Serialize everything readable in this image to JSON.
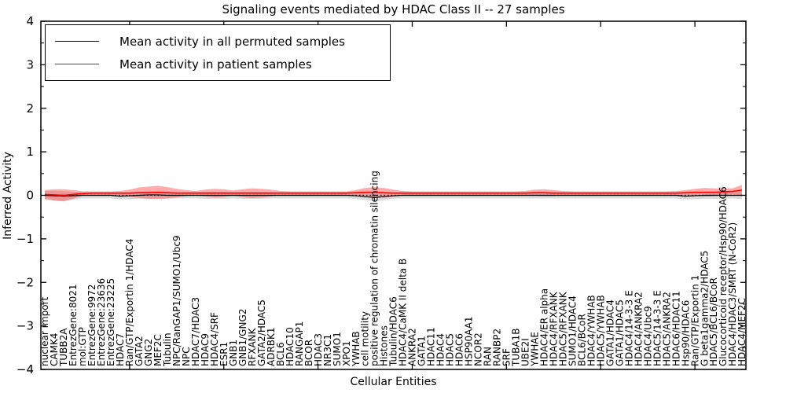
{
  "figure": {
    "title": "Signaling events mediated by HDAC Class II -- 27 samples",
    "xlabel": "Cellular Entities",
    "ylabel": "Inferred Activity"
  },
  "legend": {
    "items": [
      {
        "label": "Mean activity in all permuted samples",
        "color": "#000000"
      },
      {
        "label": "Mean activity in patient samples",
        "color": "#ff0000"
      }
    ]
  },
  "chart_data": {
    "type": "line",
    "title": "Signaling events mediated by HDAC Class II -- 27 samples",
    "xlabel": "Cellular Entities",
    "ylabel": "Inferred Activity",
    "ylim": [
      -4,
      4
    ],
    "y_major_ticks": [
      -4,
      -3,
      -2,
      -1,
      0,
      1,
      2,
      3,
      4
    ],
    "y_minor_step": 0.5,
    "x_major_tick_indices": [
      9,
      19,
      29,
      39,
      49,
      59,
      69
    ],
    "grid": false,
    "legend_position": "upper left",
    "zero_line": {
      "value": 0,
      "style": "dotted",
      "color": "#000000"
    },
    "colors": {
      "permuted_line": "#000000",
      "permuted_band": "#bbbbbb",
      "patient_line": "#ff0000",
      "patient_band": "#ff4444"
    },
    "categories": [
      "nuclear import",
      "CAMK4",
      "TUBB2A",
      "EntrezGene:8021",
      "mol:GTP",
      "EntrezGene:9972",
      "EntrezGene:23636",
      "EntrezGene:23225",
      "HDAC7",
      "Ran/GTP/Exportin 1/HDAC4",
      "GATA2",
      "GNG2",
      "MEF2C",
      "Tubulin",
      "NPC/RanGAP1/SUMO1/Ubc9",
      "NPC",
      "HDAC7/HDAC3",
      "HDAC9",
      "HDAC4/SRF",
      "ESR1",
      "GNB1",
      "GNB1/GNG2",
      "RFXANK",
      "GATA2/HDAC5",
      "ADRBK1",
      "BCL6",
      "HDAC10",
      "RANGAP1",
      "BCOR",
      "HDAC3",
      "NR3C1",
      "SUMO1",
      "XPO1",
      "YWHAB",
      "cell motility",
      "positive regulation of chromatin silencing",
      "Histones",
      "Tubulin/HDAC6",
      "HDAC4/CaMK II delta B",
      "ANKRA2",
      "GATA1",
      "HDAC11",
      "HDAC4",
      "HDAC5",
      "HDAC6",
      "HSP90AA1",
      "NCOR2",
      "RAN",
      "RANBP2",
      "SRF",
      "TUBA1B",
      "UBE2I",
      "YWHAE",
      "HDAC4/ER alpha",
      "HDAC4/RFXANK",
      "HDAC5/RFXANK",
      "SUMO1/HDAC4",
      "BCL6/BCoR",
      "HDAC4/YWHAB",
      "HDAC5/YWHAB",
      "GATA1/HDAC4",
      "GATA1/HDAC5",
      "HDAC4/14-3-3 E",
      "HDAC4/ANKRA2",
      "HDAC4/Ubc9",
      "HDAC5/14-3-3 E",
      "HDAC5/ANKRA2",
      "HDAC6/HDAC11",
      "Hsp90/HDAC6",
      "Ran/GTP/Exportin 1",
      "G beta1gamma2/HDAC5",
      "HDAC5/BCL6/BCoR",
      "Glucocorticoid receptor/Hsp90/HDAC6",
      "HDAC4/HDAC3/SMRT (N-CoR2)",
      "HDAC4/MEF2C"
    ],
    "series": [
      {
        "name": "Mean activity in all permuted samples",
        "values": [
          0,
          -0.01,
          -0.02,
          -0.01,
          0,
          0,
          0,
          0,
          -0.02,
          -0.01,
          0,
          0.01,
          0.01,
          0,
          0,
          0,
          0,
          0,
          0,
          0,
          0,
          0,
          0,
          0,
          0,
          0,
          0,
          0,
          0,
          0,
          0,
          0,
          0,
          -0.01,
          -0.03,
          -0.05,
          -0.03,
          -0.01,
          0,
          0,
          0,
          0,
          0,
          0,
          0,
          0,
          0,
          0,
          0,
          0,
          0,
          0,
          0,
          0,
          0,
          0,
          0,
          0,
          0,
          0,
          0,
          0,
          0,
          0,
          0,
          0,
          0,
          0,
          -0.02,
          -0.01,
          0,
          0,
          0,
          0,
          0
        ],
        "band_halfwidth": [
          0.1,
          0.11,
          0.11,
          0.09,
          0.07,
          0.07,
          0.07,
          0.07,
          0.07,
          0.08,
          0.08,
          0.09,
          0.09,
          0.08,
          0.07,
          0.07,
          0.07,
          0.08,
          0.08,
          0.08,
          0.07,
          0.08,
          0.08,
          0.08,
          0.07,
          0.07,
          0.07,
          0.07,
          0.07,
          0.07,
          0.07,
          0.07,
          0.07,
          0.07,
          0.08,
          0.09,
          0.08,
          0.07,
          0.07,
          0.07,
          0.07,
          0.07,
          0.07,
          0.07,
          0.07,
          0.07,
          0.07,
          0.07,
          0.07,
          0.07,
          0.07,
          0.07,
          0.07,
          0.07,
          0.07,
          0.07,
          0.07,
          0.07,
          0.07,
          0.07,
          0.07,
          0.07,
          0.07,
          0.07,
          0.07,
          0.07,
          0.07,
          0.07,
          0.07,
          0.08,
          0.08,
          0.08,
          0.08,
          0.07,
          0.09
        ]
      },
      {
        "name": "Mean activity in patient samples",
        "values": [
          0.02,
          0.01,
          0,
          0.02,
          0.04,
          0.05,
          0.05,
          0.05,
          0.05,
          0.05,
          0.06,
          0.06,
          0.07,
          0.06,
          0.05,
          0.05,
          0.05,
          0.05,
          0.05,
          0.05,
          0.05,
          0.05,
          0.05,
          0.05,
          0.05,
          0.05,
          0.05,
          0.05,
          0.05,
          0.05,
          0.05,
          0.05,
          0.05,
          0.06,
          0.07,
          0.07,
          0.06,
          0.05,
          0.05,
          0.05,
          0.05,
          0.05,
          0.05,
          0.05,
          0.05,
          0.05,
          0.05,
          0.05,
          0.05,
          0.05,
          0.05,
          0.05,
          0.06,
          0.06,
          0.05,
          0.05,
          0.05,
          0.05,
          0.05,
          0.05,
          0.05,
          0.05,
          0.05,
          0.05,
          0.05,
          0.05,
          0.05,
          0.05,
          0.06,
          0.07,
          0.07,
          0.07,
          0.08,
          0.09,
          0.12
        ],
        "band_halfwidth": [
          0.1,
          0.13,
          0.14,
          0.1,
          0.05,
          0.04,
          0.04,
          0.04,
          0.05,
          0.08,
          0.12,
          0.14,
          0.15,
          0.13,
          0.1,
          0.07,
          0.05,
          0.08,
          0.1,
          0.09,
          0.06,
          0.09,
          0.11,
          0.1,
          0.08,
          0.05,
          0.04,
          0.04,
          0.04,
          0.04,
          0.04,
          0.04,
          0.04,
          0.06,
          0.1,
          0.12,
          0.11,
          0.08,
          0.05,
          0.04,
          0.04,
          0.04,
          0.04,
          0.04,
          0.04,
          0.04,
          0.04,
          0.04,
          0.04,
          0.04,
          0.04,
          0.05,
          0.07,
          0.08,
          0.07,
          0.05,
          0.04,
          0.04,
          0.04,
          0.04,
          0.04,
          0.04,
          0.04,
          0.04,
          0.04,
          0.04,
          0.04,
          0.05,
          0.06,
          0.08,
          0.1,
          0.09,
          0.08,
          0.07,
          0.12
        ]
      }
    ]
  }
}
